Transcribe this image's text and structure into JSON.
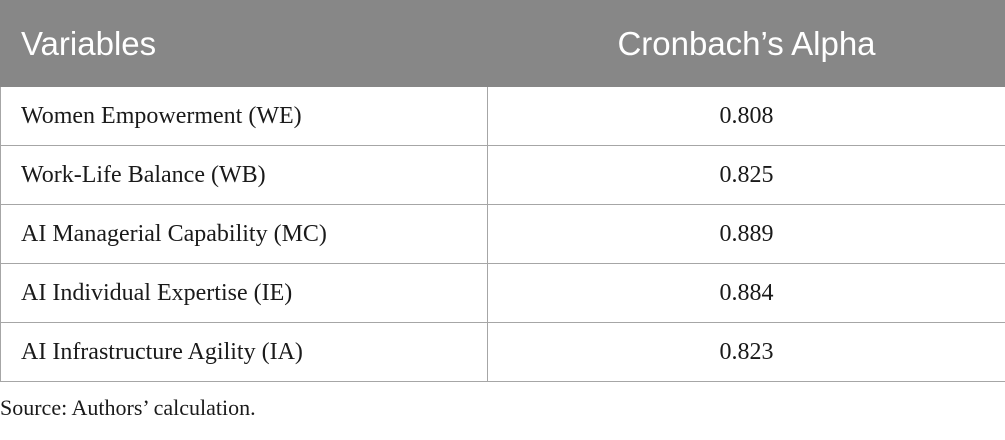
{
  "table": {
    "headers": [
      "Variables",
      "Cronbach’s Alpha"
    ],
    "rows": [
      [
        "Women Empowerment (WE)",
        "0.808"
      ],
      [
        "Work-Life Balance (WB)",
        "0.825"
      ],
      [
        "AI Managerial Capability (MC)",
        "0.889"
      ],
      [
        "AI Individual Expertise (IE)",
        "0.884"
      ],
      [
        "AI Infrastructure Agility (IA)",
        "0.823"
      ]
    ]
  },
  "source_note": "Source: Authors’ calculation.",
  "colors": {
    "header_bg": "#878787",
    "header_text": "#ffffff",
    "border": "#a6a6a6",
    "body_text": "#1a1a1a"
  }
}
